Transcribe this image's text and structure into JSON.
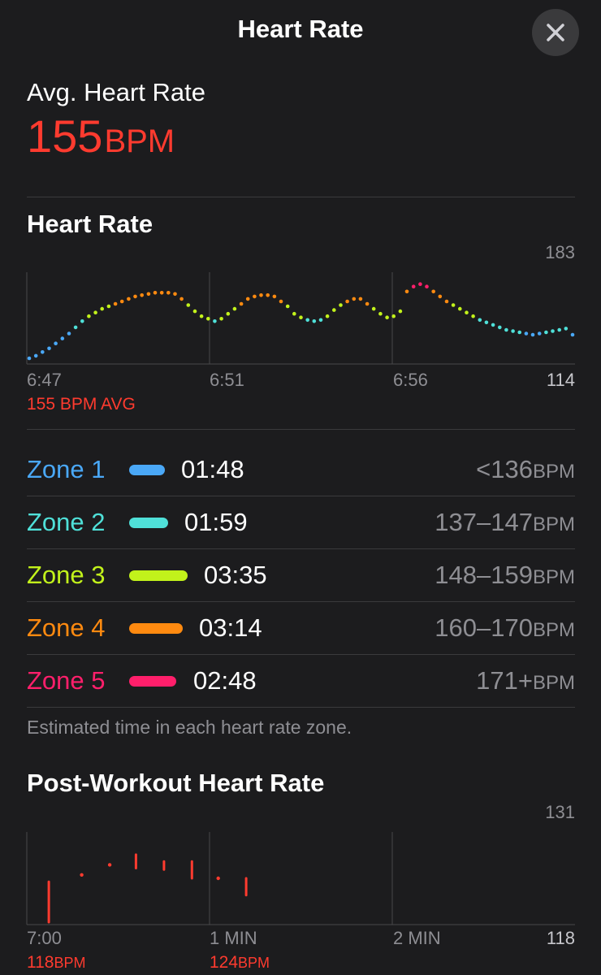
{
  "nav": {
    "title": "Heart Rate",
    "close_icon": "xmark-icon"
  },
  "summary": {
    "label": "Avg. Heart Rate",
    "value": "155",
    "unit": "BPM",
    "color": "#ff3b2f"
  },
  "heart_chart": {
    "title": "Heart Rate",
    "y_max_label": "183",
    "y_min_label": "114",
    "x_labels": [
      "6:47",
      "6:51",
      "6:56"
    ],
    "avg_note": "155 BPM AVG"
  },
  "zones": [
    {
      "name": "Zone 1",
      "time": "01:48",
      "range": "<136",
      "unit": "BPM",
      "color": "#4aa8f7"
    },
    {
      "name": "Zone 2",
      "time": "01:59",
      "range": "137–147",
      "unit": "BPM",
      "color": "#4fe0d8"
    },
    {
      "name": "Zone 3",
      "time": "03:35",
      "range": "148–159",
      "unit": "BPM",
      "color": "#c2f21b"
    },
    {
      "name": "Zone 4",
      "time": "03:14",
      "range": "160–170",
      "unit": "BPM",
      "color": "#ff8a10"
    },
    {
      "name": "Zone 5",
      "time": "02:48",
      "range": "171+",
      "unit": "BPM",
      "color": "#ff1f6b"
    }
  ],
  "zones_caption": "Estimated time in each heart rate zone.",
  "post_chart": {
    "title": "Post-Workout Heart Rate",
    "y_max_label": "131",
    "y_min_label": "118",
    "x_labels": [
      "7:00",
      "1 MIN",
      "2 MIN"
    ],
    "start_value": "118",
    "start_unit": "BPM",
    "end_value": "124",
    "end_unit": "BPM",
    "color": "#ff3b2f"
  },
  "chart_data": [
    {
      "type": "scatter",
      "title": "Heart Rate",
      "ylim": [
        114,
        183
      ],
      "x_ticks": [
        "6:47",
        "6:51",
        "6:56"
      ],
      "x": [
        0.0,
        0.15,
        0.3,
        0.45,
        0.6,
        0.75,
        0.9,
        1.05,
        1.2,
        1.35,
        1.5,
        1.65,
        1.8,
        1.95,
        2.1,
        2.25,
        2.4,
        2.55,
        2.7,
        2.85,
        3.0,
        3.15,
        3.3,
        3.45,
        3.6,
        3.75,
        3.9,
        4.05,
        4.2,
        4.35,
        4.5,
        4.65,
        4.8,
        4.95,
        5.1,
        5.25,
        5.4,
        5.55,
        5.7,
        5.85,
        6.0,
        6.15,
        6.3,
        6.45,
        6.6,
        6.75,
        6.9,
        7.05,
        7.2,
        7.35,
        7.5,
        7.65,
        7.8,
        7.95,
        8.1,
        8.25,
        8.4,
        8.55,
        8.7,
        8.85,
        9.0,
        9.15,
        9.3,
        9.45,
        9.6,
        9.75,
        9.9,
        10.05,
        10.2,
        10.35,
        10.5,
        10.65,
        10.8,
        10.95,
        11.1,
        11.25,
        11.4,
        11.55,
        11.7,
        11.85,
        12.0,
        12.15,
        12.3
      ],
      "y": [
        116,
        118,
        121,
        124,
        128,
        132,
        136,
        141,
        146,
        150,
        153,
        156,
        158,
        160,
        162,
        164,
        166,
        167,
        168,
        169,
        169,
        169,
        168,
        164,
        159,
        154,
        150,
        148,
        146,
        148,
        152,
        156,
        160,
        164,
        166,
        167,
        167,
        166,
        162,
        158,
        152,
        149,
        147,
        146,
        147,
        150,
        155,
        159,
        162,
        164,
        164,
        160,
        156,
        152,
        149,
        150,
        154,
        170,
        174,
        176,
        174,
        170,
        166,
        162,
        159,
        156,
        153,
        150,
        147,
        145,
        143,
        141,
        139,
        138,
        137,
        136,
        135,
        136,
        137,
        138,
        139,
        140,
        135
      ],
      "marker_colors_by_zone": true
    },
    {
      "type": "scatter",
      "title": "Post-Workout Heart Rate",
      "ylim": [
        118,
        131
      ],
      "x_ticks": [
        "7:00",
        "1 MIN",
        "2 MIN"
      ],
      "points": [
        {
          "x": 0.05,
          "low": 118,
          "high": 124
        },
        {
          "x": 0.25,
          "high": 125,
          "low": 125
        },
        {
          "x": 0.42,
          "high": 126.5,
          "low": 126.5
        },
        {
          "x": 0.58,
          "low": 126,
          "high": 128
        },
        {
          "x": 0.75,
          "low": 125.8,
          "high": 127
        },
        {
          "x": 0.92,
          "low": 124.5,
          "high": 127
        },
        {
          "x": 1.08,
          "low": 124.5,
          "high": 124.5
        },
        {
          "x": 1.25,
          "low": 122,
          "high": 124.5
        }
      ]
    }
  ]
}
